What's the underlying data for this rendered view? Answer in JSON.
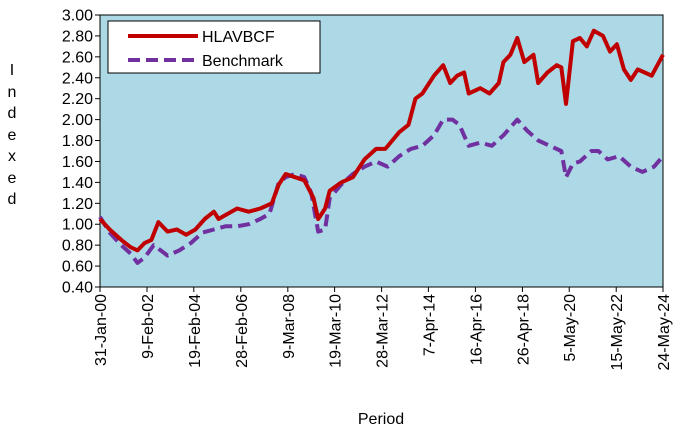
{
  "chart_data": {
    "type": "line",
    "x_label": "Period",
    "y_label": "Indexed",
    "xlim": [
      2000.08,
      2024.39
    ],
    "ylim": [
      0.4,
      3.0
    ],
    "yticks": [
      {
        "value": 0.4,
        "label": "0.40"
      },
      {
        "value": 0.6,
        "label": "0.60"
      },
      {
        "value": 0.8,
        "label": "0.80"
      },
      {
        "value": 1.0,
        "label": "1.00"
      },
      {
        "value": 1.2,
        "label": "1.20"
      },
      {
        "value": 1.4,
        "label": "1.40"
      },
      {
        "value": 1.6,
        "label": "1.60"
      },
      {
        "value": 1.8,
        "label": "1.80"
      },
      {
        "value": 2.0,
        "label": "2.00"
      },
      {
        "value": 2.2,
        "label": "2.20"
      },
      {
        "value": 2.4,
        "label": "2.40"
      },
      {
        "value": 2.6,
        "label": "2.60"
      },
      {
        "value": 2.8,
        "label": "2.80"
      },
      {
        "value": 3.0,
        "label": "3.00"
      }
    ],
    "xticks": [
      {
        "value": 2000.08,
        "label": "31-Jan-00"
      },
      {
        "value": 2002.11,
        "label": "9-Feb-02"
      },
      {
        "value": 2004.13,
        "label": "19-Feb-04"
      },
      {
        "value": 2006.16,
        "label": "28-Feb-06"
      },
      {
        "value": 2008.19,
        "label": "9-Mar-08"
      },
      {
        "value": 2010.21,
        "label": "19-Mar-10"
      },
      {
        "value": 2012.24,
        "label": "28-Mar-12"
      },
      {
        "value": 2014.26,
        "label": "7-Apr-14"
      },
      {
        "value": 2016.29,
        "label": "16-Apr-16"
      },
      {
        "value": 2018.32,
        "label": "26-Apr-18"
      },
      {
        "value": 2020.34,
        "label": "5-May-20"
      },
      {
        "value": 2022.37,
        "label": "15-May-22"
      },
      {
        "value": 2024.39,
        "label": "24-May-24"
      }
    ],
    "background": "#add8e6",
    "legend": "upper left",
    "series": [
      {
        "name": "HLAVBCF",
        "color": "#c00000",
        "dashed": false,
        "x": [
          2000.08,
          2000.5,
          2001.0,
          2001.4,
          2001.7,
          2002.0,
          2002.3,
          2002.6,
          2003.0,
          2003.4,
          2003.8,
          2004.2,
          2004.6,
          2005.0,
          2005.2,
          2005.6,
          2006.0,
          2006.5,
          2007.0,
          2007.5,
          2007.8,
          2008.1,
          2008.5,
          2008.9,
          2009.3,
          2009.5,
          2009.8,
          2010.0,
          2010.5,
          2011.0,
          2011.5,
          2012.0,
          2012.4,
          2012.7,
          2013.0,
          2013.4,
          2013.7,
          2014.0,
          2014.5,
          2014.9,
          2015.2,
          2015.5,
          2015.8,
          2016.0,
          2016.5,
          2016.9,
          2017.3,
          2017.5,
          2017.8,
          2018.1,
          2018.4,
          2018.8,
          2019.0,
          2019.4,
          2019.8,
          2020.0,
          2020.2,
          2020.5,
          2020.8,
          2021.1,
          2021.4,
          2021.8,
          2022.1,
          2022.4,
          2022.7,
          2023.0,
          2023.3,
          2023.6,
          2023.9,
          2024.39
        ],
        "values": [
          1.05,
          0.95,
          0.85,
          0.78,
          0.75,
          0.82,
          0.85,
          1.02,
          0.93,
          0.95,
          0.9,
          0.95,
          1.05,
          1.12,
          1.05,
          1.1,
          1.15,
          1.12,
          1.15,
          1.2,
          1.38,
          1.48,
          1.45,
          1.42,
          1.25,
          1.05,
          1.15,
          1.32,
          1.4,
          1.45,
          1.62,
          1.72,
          1.72,
          1.8,
          1.88,
          1.95,
          2.2,
          2.25,
          2.42,
          2.52,
          2.35,
          2.42,
          2.45,
          2.25,
          2.3,
          2.25,
          2.35,
          2.55,
          2.62,
          2.78,
          2.55,
          2.62,
          2.35,
          2.45,
          2.52,
          2.5,
          2.15,
          2.75,
          2.78,
          2.7,
          2.85,
          2.8,
          2.65,
          2.72,
          2.48,
          2.38,
          2.48,
          2.45,
          2.42,
          2.62
        ]
      },
      {
        "name": "Benchmark",
        "color": "#7030a0",
        "dashed": true,
        "x": [
          2000.08,
          2000.5,
          2001.0,
          2001.4,
          2001.7,
          2002.0,
          2002.4,
          2002.7,
          2003.0,
          2003.5,
          2004.0,
          2004.5,
          2005.0,
          2005.5,
          2006.0,
          2006.5,
          2007.0,
          2007.4,
          2007.8,
          2008.1,
          2008.5,
          2008.9,
          2009.2,
          2009.5,
          2009.8,
          2010.0,
          2010.5,
          2011.0,
          2011.5,
          2012.0,
          2012.5,
          2013.0,
          2013.5,
          2014.0,
          2014.5,
          2014.9,
          2015.3,
          2015.6,
          2016.0,
          2016.5,
          2017.0,
          2017.5,
          2018.1,
          2018.5,
          2019.0,
          2019.5,
          2020.0,
          2020.2,
          2020.5,
          2020.8,
          2021.3,
          2021.6,
          2022.0,
          2022.5,
          2023.0,
          2023.5,
          2024.0,
          2024.39
        ],
        "values": [
          1.07,
          0.92,
          0.8,
          0.72,
          0.63,
          0.68,
          0.8,
          0.75,
          0.7,
          0.75,
          0.82,
          0.92,
          0.95,
          0.98,
          0.98,
          1.0,
          1.05,
          1.1,
          1.4,
          1.45,
          1.48,
          1.45,
          1.3,
          0.93,
          0.95,
          1.25,
          1.38,
          1.48,
          1.55,
          1.6,
          1.55,
          1.65,
          1.72,
          1.75,
          1.85,
          2.0,
          2.0,
          1.95,
          1.75,
          1.78,
          1.75,
          1.85,
          2.0,
          1.9,
          1.8,
          1.75,
          1.7,
          1.45,
          1.58,
          1.6,
          1.7,
          1.7,
          1.62,
          1.65,
          1.55,
          1.5,
          1.55,
          1.65
        ]
      }
    ]
  }
}
